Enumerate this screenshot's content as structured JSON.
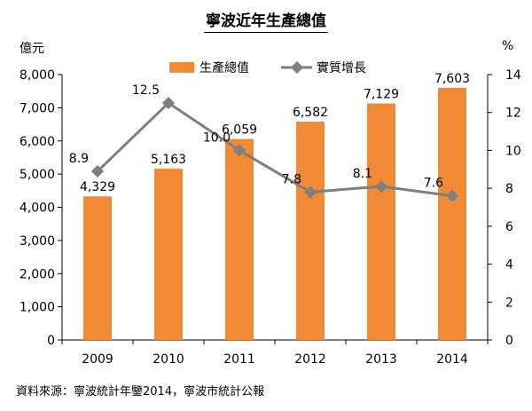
{
  "title": "寧波近年生產總值",
  "left_unit": "億元",
  "right_unit": "%",
  "source": "資料來源：寧波統計年鑒2014，寧波市統計公報",
  "colors": {
    "bar": "#F08A34",
    "line": "#7F7F7F",
    "axis": "#000000"
  },
  "chart_data": {
    "type": "bar",
    "categories": [
      "2009",
      "2010",
      "2011",
      "2012",
      "2013",
      "2014"
    ],
    "series": [
      {
        "name": "生產總值",
        "type": "bar",
        "axis": "left",
        "values": [
          4329,
          5163,
          6059,
          6582,
          7129,
          7603
        ],
        "labels": [
          "4,329",
          "5,163",
          "6,059",
          "6,582",
          "7,129",
          "7,603"
        ]
      },
      {
        "name": "實質增長",
        "type": "line",
        "axis": "right",
        "values": [
          8.9,
          12.5,
          10.0,
          7.8,
          8.1,
          7.6
        ],
        "labels": [
          "8.9",
          "12.5",
          "10.0",
          "7.8",
          "8.1",
          "7.6"
        ]
      }
    ],
    "y_left": {
      "range": [
        0,
        8000
      ],
      "ticks": [
        "0",
        "1,000",
        "2,000",
        "3,000",
        "4,000",
        "5,000",
        "6,000",
        "7,000",
        "8,000"
      ]
    },
    "y_right": {
      "range": [
        0,
        14
      ],
      "ticks": [
        "0",
        "2",
        "4",
        "6",
        "8",
        "10",
        "12",
        "14"
      ]
    },
    "grid": false,
    "legend": "top-center"
  }
}
